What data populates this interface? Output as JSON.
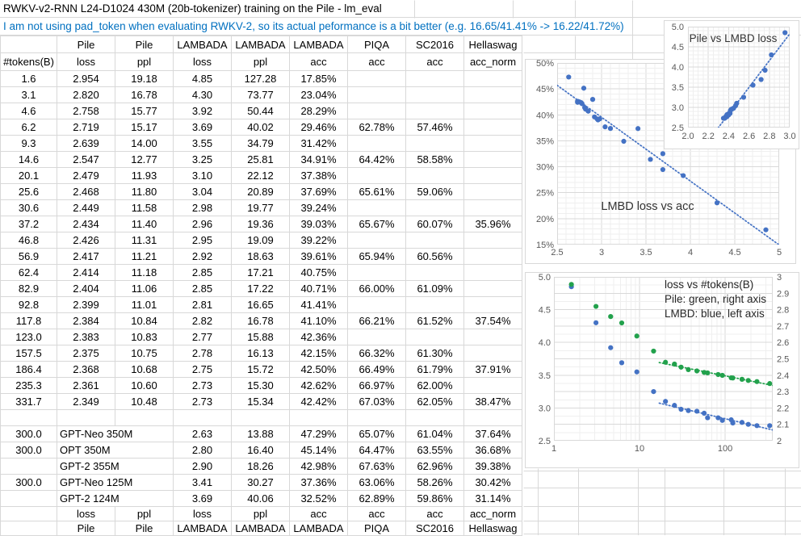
{
  "title": "RWKV-v2-RNN L24-D1024 430M (20b-tokenizer) training on the Pile - lm_eval",
  "note": "I am not using pad_token when evaluating RWKV-2, so its actual peformance is a bit better (e.g. 16.65/41.41% -> 16.22/41.72%)",
  "colors": {
    "series_blue": "#4472C4",
    "series_green": "#22A14C",
    "note_text": "#0070C0",
    "grid_major": "#D9D9D9",
    "grid_minor": "#EFEFEF",
    "axis_text": "#595959",
    "table_border": "#D8D8D8",
    "chart_title_text": "#333333"
  },
  "table": {
    "col_groups": [
      "",
      "Pile",
      "Pile",
      "LAMBADA",
      "LAMBADA",
      "LAMBADA",
      "PIQA",
      "SC2016",
      "Hellaswag"
    ],
    "col_metrics": [
      "#tokens(B)",
      "loss",
      "ppl",
      "loss",
      "ppl",
      "acc",
      "acc",
      "acc",
      "acc_norm"
    ],
    "rows": [
      [
        "1.6",
        "2.954",
        "19.18",
        "4.85",
        "127.28",
        "17.85%",
        "",
        "",
        ""
      ],
      [
        "3.1",
        "2.820",
        "16.78",
        "4.30",
        "73.77",
        "23.04%",
        "",
        "",
        ""
      ],
      [
        "4.6",
        "2.758",
        "15.77",
        "3.92",
        "50.44",
        "28.29%",
        "",
        "",
        ""
      ],
      [
        "6.2",
        "2.719",
        "15.17",
        "3.69",
        "40.02",
        "29.46%",
        "62.78%",
        "57.46%",
        ""
      ],
      [
        "9.3",
        "2.639",
        "14.00",
        "3.55",
        "34.79",
        "31.42%",
        "",
        "",
        ""
      ],
      [
        "14.6",
        "2.547",
        "12.77",
        "3.25",
        "25.81",
        "34.91%",
        "64.42%",
        "58.58%",
        ""
      ],
      [
        "20.1",
        "2.479",
        "11.93",
        "3.10",
        "22.12",
        "37.38%",
        "",
        "",
        ""
      ],
      [
        "25.6",
        "2.468",
        "11.80",
        "3.04",
        "20.89",
        "37.69%",
        "65.61%",
        "59.06%",
        ""
      ],
      [
        "30.6",
        "2.449",
        "11.58",
        "2.98",
        "19.77",
        "39.24%",
        "",
        "",
        ""
      ],
      [
        "37.2",
        "2.434",
        "11.40",
        "2.96",
        "19.36",
        "39.03%",
        "65.67%",
        "60.07%",
        "35.96%"
      ],
      [
        "46.8",
        "2.426",
        "11.31",
        "2.95",
        "19.09",
        "39.22%",
        "",
        "",
        ""
      ],
      [
        "56.9",
        "2.417",
        "11.21",
        "2.92",
        "18.63",
        "39.61%",
        "65.94%",
        "60.56%",
        ""
      ],
      [
        "62.4",
        "2.414",
        "11.18",
        "2.85",
        "17.21",
        "40.75%",
        "",
        "",
        ""
      ],
      [
        "82.9",
        "2.404",
        "11.06",
        "2.85",
        "17.22",
        "40.71%",
        "66.00%",
        "61.09%",
        ""
      ],
      [
        "92.8",
        "2.399",
        "11.01",
        "2.81",
        "16.65",
        "41.41%",
        "",
        "",
        ""
      ],
      [
        "117.8",
        "2.384",
        "10.84",
        "2.82",
        "16.78",
        "41.10%",
        "66.21%",
        "61.52%",
        "37.54%"
      ],
      [
        "123.0",
        "2.383",
        "10.83",
        "2.77",
        "15.88",
        "42.36%",
        "",
        "",
        ""
      ],
      [
        "157.5",
        "2.375",
        "10.75",
        "2.78",
        "16.13",
        "42.15%",
        "66.32%",
        "61.30%",
        ""
      ],
      [
        "186.4",
        "2.368",
        "10.68",
        "2.75",
        "15.72",
        "42.50%",
        "66.49%",
        "61.79%",
        "37.91%"
      ],
      [
        "235.3",
        "2.361",
        "10.60",
        "2.73",
        "15.30",
        "42.62%",
        "66.97%",
        "62.00%",
        ""
      ],
      [
        "331.7",
        "2.349",
        "10.48",
        "2.73",
        "15.34",
        "42.42%",
        "67.03%",
        "62.05%",
        "38.47%"
      ]
    ],
    "baselines": [
      [
        "300.0",
        "GPT-Neo 350M",
        "2.63",
        "13.88",
        "47.29%",
        "65.07%",
        "61.04%",
        "37.64%"
      ],
      [
        "300.0",
        "OPT 350M",
        "2.80",
        "16.40",
        "45.14%",
        "64.47%",
        "63.55%",
        "36.68%"
      ],
      [
        "",
        "GPT-2 355M",
        "2.90",
        "18.26",
        "42.98%",
        "67.63%",
        "62.96%",
        "39.38%"
      ],
      [
        "300.0",
        "GPT-Neo 125M",
        "3.41",
        "30.27",
        "37.36%",
        "63.06%",
        "58.26%",
        "30.42%"
      ],
      [
        "",
        "GPT-2 124M",
        "3.69",
        "40.06",
        "32.52%",
        "62.89%",
        "59.86%",
        "31.14%"
      ]
    ],
    "footer_metrics": [
      "",
      "loss",
      "ppl",
      "loss",
      "ppl",
      "acc",
      "acc",
      "acc",
      "acc_norm"
    ],
    "footer_groups": [
      "",
      "Pile",
      "Pile",
      "LAMBADA",
      "LAMBADA",
      "LAMBADA",
      "PIQA",
      "SC2016",
      "Hellaswag"
    ]
  },
  "chart_data": [
    {
      "id": "pile_vs_lmbd",
      "type": "scatter",
      "title": "Pile vs LMBD loss",
      "xlim": [
        2.0,
        3.0
      ],
      "ylim": [
        2.5,
        5.0
      ],
      "xticks": [
        "2.0",
        "2.2",
        "2.4",
        "2.6",
        "2.8",
        "3.0"
      ],
      "yticks": [
        "5.0",
        "4.5",
        "4.0",
        "3.5",
        "3.0",
        "2.5"
      ],
      "x_pile_loss": [
        2.954,
        2.82,
        2.758,
        2.719,
        2.639,
        2.547,
        2.479,
        2.468,
        2.449,
        2.434,
        2.426,
        2.417,
        2.414,
        2.404,
        2.399,
        2.384,
        2.383,
        2.375,
        2.368,
        2.361,
        2.349
      ],
      "y_lambada_loss": [
        4.85,
        4.3,
        3.92,
        3.69,
        3.55,
        3.25,
        3.1,
        3.04,
        2.98,
        2.96,
        2.95,
        2.92,
        2.85,
        2.85,
        2.81,
        2.82,
        2.77,
        2.78,
        2.75,
        2.73,
        2.73
      ],
      "trendline": "linear-dotted",
      "point_color": "#4472C4",
      "grid": "minor+major",
      "legend_position": "none"
    },
    {
      "id": "lmbd_loss_vs_acc",
      "type": "scatter",
      "title": "LMBD loss vs acc",
      "xlim": [
        2.5,
        5.0
      ],
      "ylim_pct": [
        15,
        50
      ],
      "xticks": [
        "2.5",
        "3",
        "3.5",
        "4",
        "4.5",
        "5"
      ],
      "yticks": [
        "50%",
        "45%",
        "40%",
        "35%",
        "30%",
        "25%",
        "20%",
        "15%"
      ],
      "x_lambada_loss": [
        4.85,
        4.3,
        3.92,
        3.69,
        3.55,
        3.25,
        3.1,
        3.04,
        2.98,
        2.96,
        2.95,
        2.92,
        2.85,
        2.85,
        2.81,
        2.82,
        2.77,
        2.78,
        2.75,
        2.73,
        2.73,
        2.63,
        2.8,
        2.9,
        3.41,
        3.69
      ],
      "y_lambada_acc_pct": [
        17.85,
        23.04,
        28.29,
        29.46,
        31.42,
        34.91,
        37.38,
        37.69,
        39.24,
        39.03,
        39.22,
        39.61,
        40.75,
        40.71,
        41.41,
        41.1,
        42.36,
        42.15,
        42.5,
        42.62,
        42.42,
        47.29,
        45.14,
        42.98,
        37.36,
        32.52
      ],
      "trendline": "linear-dotted",
      "point_color": "#4472C4",
      "grid": "minor+major",
      "legend_position": "none"
    },
    {
      "id": "loss_vs_tokens",
      "type": "scatter",
      "title_lines": [
        "loss vs #tokens(B)",
        "Pile: green, right axis",
        "LMBD: blue, left axis"
      ],
      "xscale": "log",
      "xlim": [
        1,
        360
      ],
      "xticks": [
        "1",
        "10",
        "100"
      ],
      "left_axis": {
        "lim": [
          2.5,
          5.0
        ],
        "ticks": [
          "5.0",
          "4.5",
          "4.0",
          "3.5",
          "3.0",
          "2.5"
        ]
      },
      "right_axis": {
        "lim": [
          2.0,
          3.0
        ],
        "ticks": [
          "3",
          "2.9",
          "2.8",
          "2.7",
          "2.6",
          "2.5",
          "2.4",
          "2.3",
          "2.2",
          "2.1",
          "2"
        ]
      },
      "x_tokens_B": [
        1.6,
        3.1,
        4.6,
        6.2,
        9.3,
        14.6,
        20.1,
        25.6,
        30.6,
        37.2,
        46.8,
        56.9,
        62.4,
        82.9,
        92.8,
        117.8,
        123.0,
        157.5,
        186.4,
        235.3,
        331.7
      ],
      "series": [
        {
          "name": "LMBD loss",
          "axis": "left",
          "color": "#4472C4",
          "values": [
            4.85,
            4.3,
            3.92,
            3.69,
            3.55,
            3.25,
            3.1,
            3.04,
            2.98,
            2.96,
            2.95,
            2.92,
            2.85,
            2.85,
            2.81,
            2.82,
            2.77,
            2.78,
            2.75,
            2.73,
            2.73
          ]
        },
        {
          "name": "Pile loss",
          "axis": "right",
          "color": "#22A14C",
          "values": [
            2.954,
            2.82,
            2.758,
            2.719,
            2.639,
            2.547,
            2.479,
            2.468,
            2.449,
            2.434,
            2.426,
            2.417,
            2.414,
            2.404,
            2.399,
            2.384,
            2.383,
            2.375,
            2.368,
            2.361,
            2.349
          ]
        }
      ],
      "trendline": "dotted fit over points >= 20B",
      "grid": "minor+major",
      "legend_position": "inside-top-right"
    }
  ]
}
